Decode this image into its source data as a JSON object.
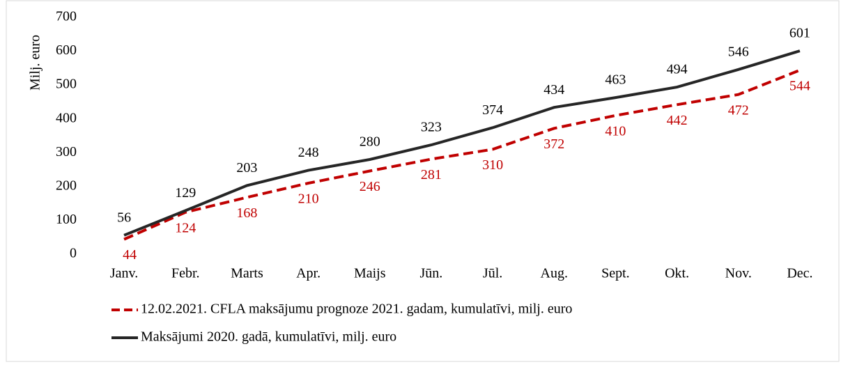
{
  "chart_data": {
    "type": "line",
    "y_label": "Milj. euro",
    "categories": [
      "Janv.",
      "Febr.",
      "Marts",
      "Apr.",
      "Maijs",
      "Jūn.",
      "Jūl.",
      "Aug.",
      "Sept.",
      "Okt.",
      "Nov.",
      "Dec."
    ],
    "series": [
      {
        "name": "12.02.2021. CFLA maksājumu prognoze 2021. gadam, kumulatīvi, milj. euro",
        "color": "#c00000",
        "dashed": true,
        "values": [
          44,
          124,
          168,
          210,
          246,
          281,
          310,
          372,
          410,
          442,
          472,
          544
        ]
      },
      {
        "name": "Maksājumi 2020. gadā, kumulatīvi, milj. euro",
        "color": "#262626",
        "dashed": false,
        "values": [
          56,
          129,
          203,
          248,
          280,
          323,
          374,
          434,
          463,
          494,
          546,
          601
        ]
      }
    ],
    "ylim": [
      0,
      700
    ],
    "yticks": [
      0,
      100,
      200,
      300,
      400,
      500,
      600,
      700
    ],
    "grid": false,
    "legend": "bottom-left"
  }
}
